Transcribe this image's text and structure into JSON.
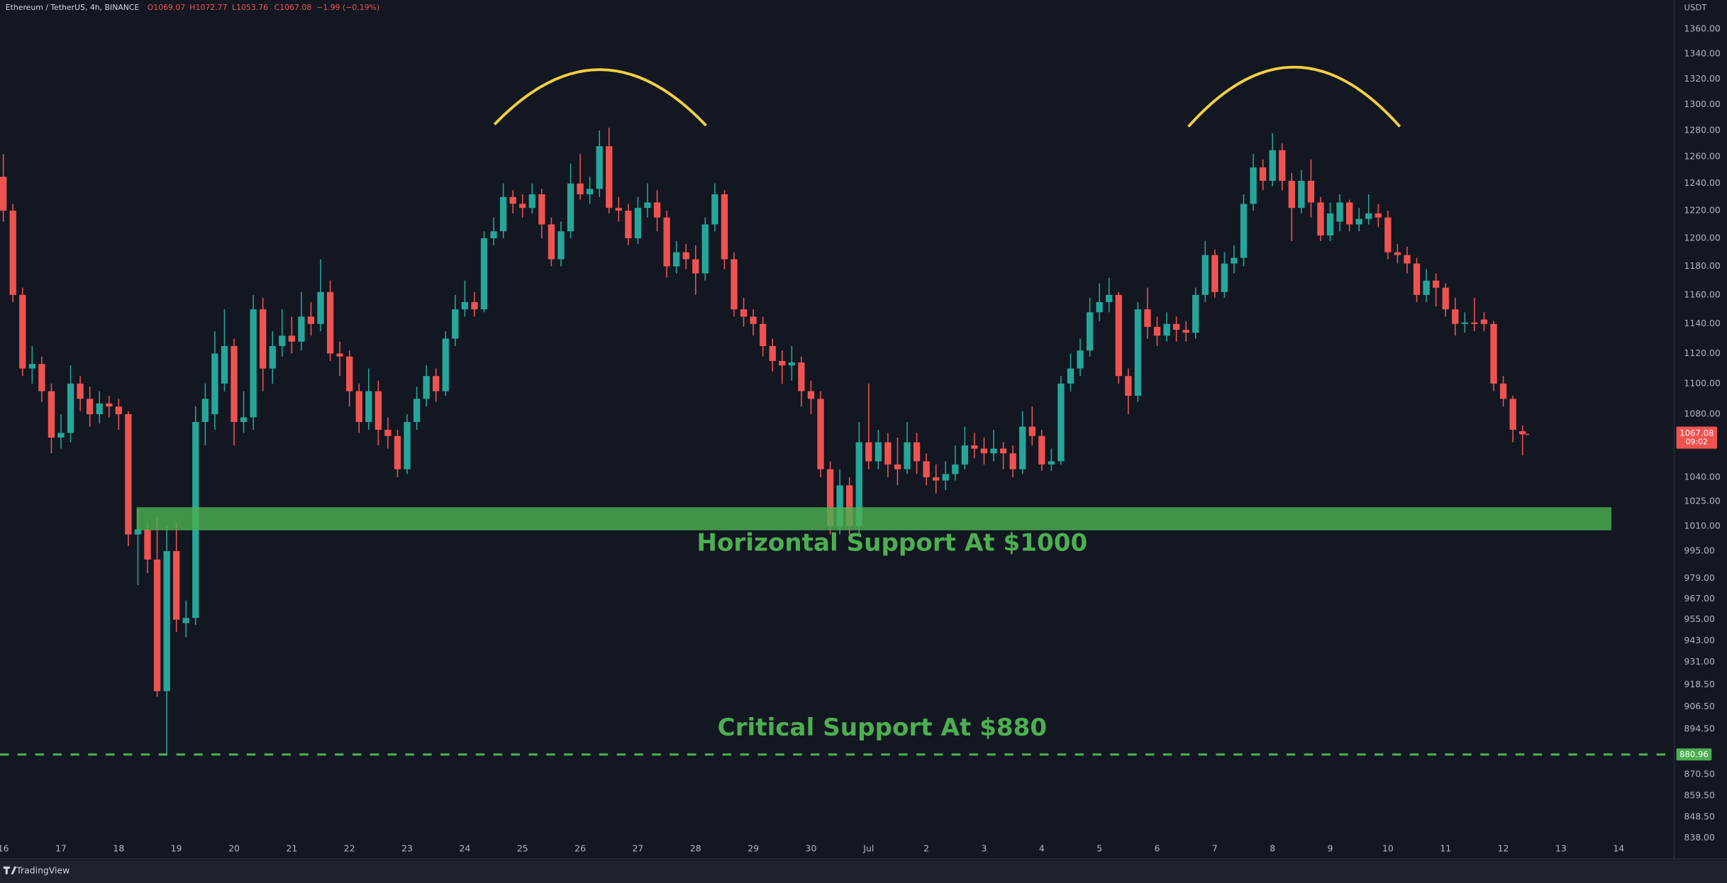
{
  "chart_data": {
    "type": "candlestick",
    "header": {
      "symbol": "Ethereum / TetherUS, 4h, BINANCE",
      "quote": [
        "O1069.07",
        "H1072.77",
        "L1053.76",
        "C1067.08",
        "−1.99 (−0.19%)"
      ]
    },
    "currency": "USDT",
    "countdown": "09:02",
    "up_color": "#26a69a",
    "down_color": "#ef5350",
    "log_scale": true,
    "grid": false,
    "ylim": [
      837.5,
      1384
    ],
    "yticks": [
      {
        "value": 1360,
        "label": "1360.00"
      },
      {
        "value": 1340,
        "label": "1340.00"
      },
      {
        "value": 1320,
        "label": "1320.00"
      },
      {
        "value": 1300,
        "label": "1300.00"
      },
      {
        "value": 1280,
        "label": "1280.00"
      },
      {
        "value": 1260,
        "label": "1260.00"
      },
      {
        "value": 1240,
        "label": "1240.00"
      },
      {
        "value": 1220,
        "label": "1220.00"
      },
      {
        "value": 1200,
        "label": "1200.00"
      },
      {
        "value": 1180,
        "label": "1180.00"
      },
      {
        "value": 1160,
        "label": "1160.00"
      },
      {
        "value": 1140,
        "label": "1140.00"
      },
      {
        "value": 1120,
        "label": "1120.00"
      },
      {
        "value": 1100,
        "label": "1100.00"
      },
      {
        "value": 1080,
        "label": "1080.00"
      },
      {
        "value": 1040,
        "label": "1040.00"
      },
      {
        "value": 1025,
        "label": "1025.00"
      },
      {
        "value": 1010,
        "label": "1010.00"
      },
      {
        "value": 995,
        "label": "995.00"
      },
      {
        "value": 979,
        "label": "979.00"
      },
      {
        "value": 967,
        "label": "967.00"
      },
      {
        "value": 955,
        "label": "955.00"
      },
      {
        "value": 943,
        "label": "943.00"
      },
      {
        "value": 931,
        "label": "931.00"
      },
      {
        "value": 918.5,
        "label": "918.50"
      },
      {
        "value": 906.5,
        "label": "906.50"
      },
      {
        "value": 894.5,
        "label": "894.50"
      },
      {
        "value": 870.5,
        "label": "870.50"
      },
      {
        "value": 859.5,
        "label": "859.50"
      },
      {
        "value": 848.5,
        "label": "848.50"
      },
      {
        "value": 838,
        "label": "838.00"
      }
    ],
    "categories": [
      "16",
      null,
      null,
      null,
      null,
      null,
      "17",
      null,
      null,
      null,
      null,
      null,
      "18",
      null,
      null,
      null,
      null,
      null,
      "19",
      null,
      null,
      null,
      null,
      null,
      "20",
      null,
      null,
      null,
      null,
      null,
      "21",
      null,
      null,
      null,
      null,
      null,
      "22",
      null,
      null,
      null,
      null,
      null,
      "23",
      null,
      null,
      null,
      null,
      null,
      "24",
      null,
      null,
      null,
      null,
      null,
      "25",
      null,
      null,
      null,
      null,
      null,
      "26",
      null,
      null,
      null,
      null,
      null,
      "27",
      null,
      null,
      null,
      null,
      null,
      "28",
      null,
      null,
      null,
      null,
      null,
      "29",
      null,
      null,
      null,
      null,
      null,
      "30",
      null,
      null,
      null,
      null,
      null,
      "Jul",
      null,
      null,
      null,
      null,
      null,
      "2",
      null,
      null,
      null,
      null,
      null,
      "3",
      null,
      null,
      null,
      null,
      null,
      "4",
      null,
      null,
      null,
      null,
      null,
      "5",
      null,
      null,
      null,
      null,
      null,
      "6",
      null,
      null,
      null,
      null,
      null,
      "7",
      null,
      null,
      null,
      null,
      null,
      "8",
      null,
      null,
      null,
      null,
      null,
      "9",
      null,
      null,
      null,
      null,
      null,
      "10",
      null,
      null,
      null,
      null,
      null,
      "11",
      null,
      null,
      null,
      null,
      null,
      "12",
      null,
      null,
      null,
      null,
      null,
      "13",
      null,
      null,
      null,
      null,
      null,
      "14",
      null,
      null,
      null,
      null,
      null
    ],
    "open": [
      1245,
      1220,
      1160,
      1110,
      1113,
      1095,
      1065,
      1068,
      1100,
      1090,
      1080,
      1087,
      1085,
      1080,
      1005,
      1008,
      990,
      915,
      995,
      953,
      956,
      1075,
      1080,
      1100,
      1125,
      1075,
      1078,
      1150,
      1110,
      1125,
      1132,
      1128,
      1145,
      1140,
      1162,
      1120,
      1118,
      1095,
      1075,
      1095,
      1070,
      1066,
      1045,
      1075,
      1090,
      1105,
      1095,
      1130,
      1150,
      1155,
      1150,
      1200,
      1205,
      1230,
      1225,
      1222,
      1232,
      1210,
      1185,
      1205,
      1240,
      1232,
      1236,
      1268,
      1222,
      1220,
      1200,
      1222,
      1226,
      1215,
      1180,
      1190,
      1185,
      1175,
      1210,
      1232,
      1185,
      1150,
      1145,
      1140,
      1125,
      1115,
      1112,
      1114,
      1095,
      1090,
      1045,
      1010,
      1035,
      1010,
      1062,
      1050,
      1062,
      1048,
      1045,
      1062,
      1050,
      1040,
      1038,
      1042,
      1048,
      1060,
      1058,
      1055,
      1058,
      1055,
      1045,
      1072,
      1066,
      1048,
      1050,
      1100,
      1110,
      1122,
      1148,
      1155,
      1160,
      1105,
      1092,
      1150,
      1138,
      1132,
      1140,
      1136,
      1134,
      1160,
      1188,
      1162,
      1182,
      1186,
      1225,
      1252,
      1242,
      1265,
      1242,
      1222,
      1242,
      1226,
      1202,
      1212,
      1226,
      1210,
      1214,
      1218,
      1215,
      1190,
      1188,
      1182,
      1160,
      1170,
      1165,
      1150,
      1140,
      1141,
      1143,
      1140,
      1100,
      1090,
      1069.07,
      null,
      null,
      null,
      null,
      null,
      null,
      null,
      null,
      null,
      null,
      null,
      null,
      null,
      null,
      null
    ],
    "high": [
      1262,
      1225,
      1165,
      1125,
      1118,
      1100,
      1080,
      1112,
      1105,
      1098,
      1095,
      1092,
      1090,
      1082,
      1020,
      1012,
      1015,
      1010,
      1012,
      966,
      1085,
      1100,
      1135,
      1150,
      1130,
      1095,
      1160,
      1158,
      1135,
      1150,
      1145,
      1162,
      1155,
      1185,
      1170,
      1128,
      1122,
      1100,
      1110,
      1102,
      1078,
      1070,
      1080,
      1098,
      1112,
      1110,
      1135,
      1160,
      1170,
      1162,
      1205,
      1215,
      1240,
      1235,
      1232,
      1240,
      1236,
      1215,
      1212,
      1255,
      1262,
      1245,
      1280,
      1282,
      1230,
      1225,
      1230,
      1240,
      1235,
      1220,
      1198,
      1196,
      1195,
      1215,
      1240,
      1235,
      1190,
      1158,
      1150,
      1145,
      1130,
      1122,
      1125,
      1118,
      1102,
      1095,
      1050,
      1045,
      1040,
      1075,
      1100,
      1070,
      1068,
      1065,
      1075,
      1068,
      1055,
      1048,
      1050,
      1060,
      1072,
      1068,
      1065,
      1070,
      1062,
      1060,
      1082,
      1085,
      1070,
      1058,
      1105,
      1120,
      1130,
      1158,
      1168,
      1172,
      1162,
      1110,
      1155,
      1165,
      1145,
      1148,
      1145,
      1142,
      1165,
      1198,
      1192,
      1190,
      1195,
      1232,
      1262,
      1258,
      1278,
      1270,
      1248,
      1250,
      1258,
      1230,
      1226,
      1232,
      1228,
      1222,
      1232,
      1225,
      1220,
      1196,
      1194,
      1186,
      1178,
      1175,
      1168,
      1158,
      1148,
      1158,
      1148,
      1142,
      1105,
      1092,
      1072.77,
      null,
      null,
      null,
      null,
      null,
      null,
      null,
      null,
      null,
      null,
      null,
      null,
      null,
      null,
      null
    ],
    "low": [
      1212,
      1155,
      1105,
      1100,
      1088,
      1055,
      1058,
      1062,
      1082,
      1072,
      1074,
      1078,
      1070,
      998,
      975,
      982,
      912,
      880.96,
      948,
      945,
      952,
      1060,
      1070,
      1095,
      1060,
      1068,
      1070,
      1095,
      1100,
      1118,
      1120,
      1122,
      1132,
      1135,
      1115,
      1105,
      1085,
      1068,
      1070,
      1060,
      1058,
      1040,
      1042,
      1070,
      1085,
      1088,
      1092,
      1125,
      1145,
      1145,
      1148,
      1195,
      1200,
      1218,
      1215,
      1218,
      1200,
      1180,
      1180,
      1200,
      1228,
      1225,
      1230,
      1218,
      1212,
      1195,
      1196,
      1215,
      1205,
      1172,
      1175,
      1178,
      1160,
      1170,
      1205,
      1178,
      1145,
      1138,
      1132,
      1118,
      1108,
      1100,
      1102,
      1085,
      1080,
      1040,
      1005,
      1005,
      1005,
      1005,
      1045,
      1045,
      1040,
      1035,
      1042,
      1042,
      1035,
      1030,
      1032,
      1038,
      1045,
      1052,
      1048,
      1050,
      1045,
      1040,
      1042,
      1060,
      1044,
      1044,
      1048,
      1095,
      1105,
      1118,
      1142,
      1148,
      1100,
      1080,
      1088,
      1130,
      1125,
      1128,
      1128,
      1128,
      1130,
      1155,
      1158,
      1158,
      1175,
      1180,
      1220,
      1235,
      1238,
      1235,
      1198,
      1218,
      1215,
      1198,
      1198,
      1205,
      1205,
      1205,
      1210,
      1208,
      1185,
      1182,
      1175,
      1155,
      1155,
      1152,
      1145,
      1132,
      1134,
      1135,
      1135,
      1095,
      1085,
      1062,
      1053.76,
      null,
      null,
      null,
      null,
      null,
      null,
      null,
      null,
      null,
      null,
      null,
      null,
      null,
      null,
      null
    ],
    "close": [
      1220,
      1160,
      1110,
      1113,
      1095,
      1065,
      1068,
      1100,
      1090,
      1080,
      1087,
      1085,
      1080,
      1005,
      1008,
      990,
      915,
      995,
      955,
      956,
      1075,
      1090,
      1120,
      1125,
      1075,
      1078,
      1150,
      1110,
      1125,
      1132,
      1128,
      1145,
      1140,
      1162,
      1120,
      1118,
      1095,
      1075,
      1095,
      1070,
      1066,
      1045,
      1075,
      1090,
      1105,
      1095,
      1130,
      1150,
      1155,
      1150,
      1200,
      1205,
      1230,
      1225,
      1222,
      1232,
      1210,
      1185,
      1205,
      1240,
      1232,
      1236,
      1268,
      1222,
      1220,
      1200,
      1222,
      1226,
      1215,
      1180,
      1190,
      1185,
      1175,
      1210,
      1232,
      1185,
      1150,
      1145,
      1140,
      1125,
      1115,
      1112,
      1114,
      1095,
      1090,
      1045,
      1010,
      1035,
      1010,
      1062,
      1050,
      1062,
      1048,
      1045,
      1062,
      1050,
      1040,
      1038,
      1042,
      1048,
      1060,
      1058,
      1055,
      1058,
      1055,
      1045,
      1072,
      1066,
      1048,
      1050,
      1100,
      1110,
      1122,
      1148,
      1155,
      1160,
      1105,
      1092,
      1150,
      1138,
      1132,
      1140,
      1136,
      1134,
      1160,
      1188,
      1162,
      1182,
      1186,
      1225,
      1252,
      1242,
      1265,
      1242,
      1222,
      1242,
      1226,
      1202,
      1218,
      1226,
      1210,
      1214,
      1218,
      1215,
      1190,
      1188,
      1182,
      1160,
      1170,
      1165,
      1150,
      1140,
      1141,
      1140,
      1140,
      1100,
      1090,
      1070,
      1067.08,
      null,
      null,
      null,
      null,
      null,
      null,
      null,
      null,
      null,
      null,
      null,
      null,
      null,
      null,
      null
    ],
    "support_zone": [
      1007.5,
      1021.5
    ],
    "support_zone_label": "Horizontal Support At $1000",
    "critical_level": 880.96,
    "critical_label": "Critical Support At $880",
    "annotation_color": "#4caf50",
    "footer": "TradingView"
  }
}
